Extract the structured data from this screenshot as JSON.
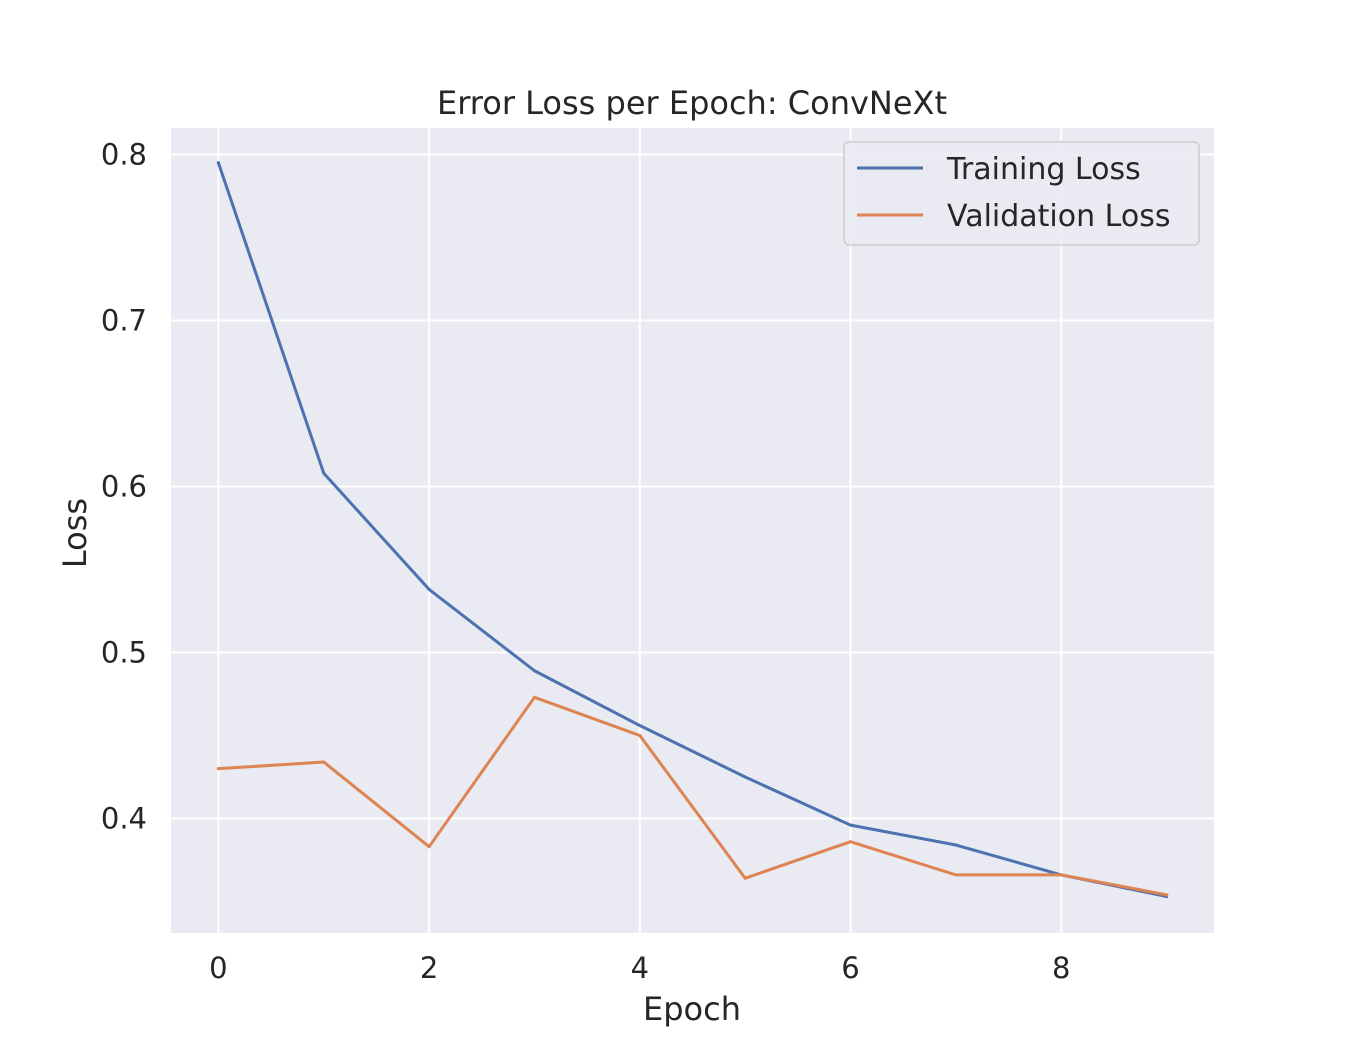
{
  "chart_data": {
    "type": "line",
    "title": "Error Loss per Epoch: ConvNeXt",
    "xlabel": "Epoch",
    "ylabel": "Loss",
    "x": [
      0,
      1,
      2,
      3,
      4,
      5,
      6,
      7,
      8,
      9
    ],
    "xticks": [
      0,
      2,
      4,
      6,
      8
    ],
    "yticks": [
      0.4,
      0.5,
      0.6,
      0.7,
      0.8
    ],
    "xlim": [
      -0.45,
      9.45
    ],
    "ylim": [
      0.331,
      0.816
    ],
    "grid": true,
    "legend_position": "top-right",
    "background_color": "#eaeaf2",
    "series": [
      {
        "name": "Training Loss",
        "color": "#4c72b0",
        "values": [
          0.795,
          0.608,
          0.538,
          0.489,
          0.456,
          0.425,
          0.396,
          0.384,
          0.366,
          0.353
        ]
      },
      {
        "name": "Validation Loss",
        "color": "#dd8452",
        "values": [
          0.43,
          0.434,
          0.383,
          0.473,
          0.45,
          0.364,
          0.386,
          0.366,
          0.366,
          0.354
        ]
      }
    ]
  }
}
